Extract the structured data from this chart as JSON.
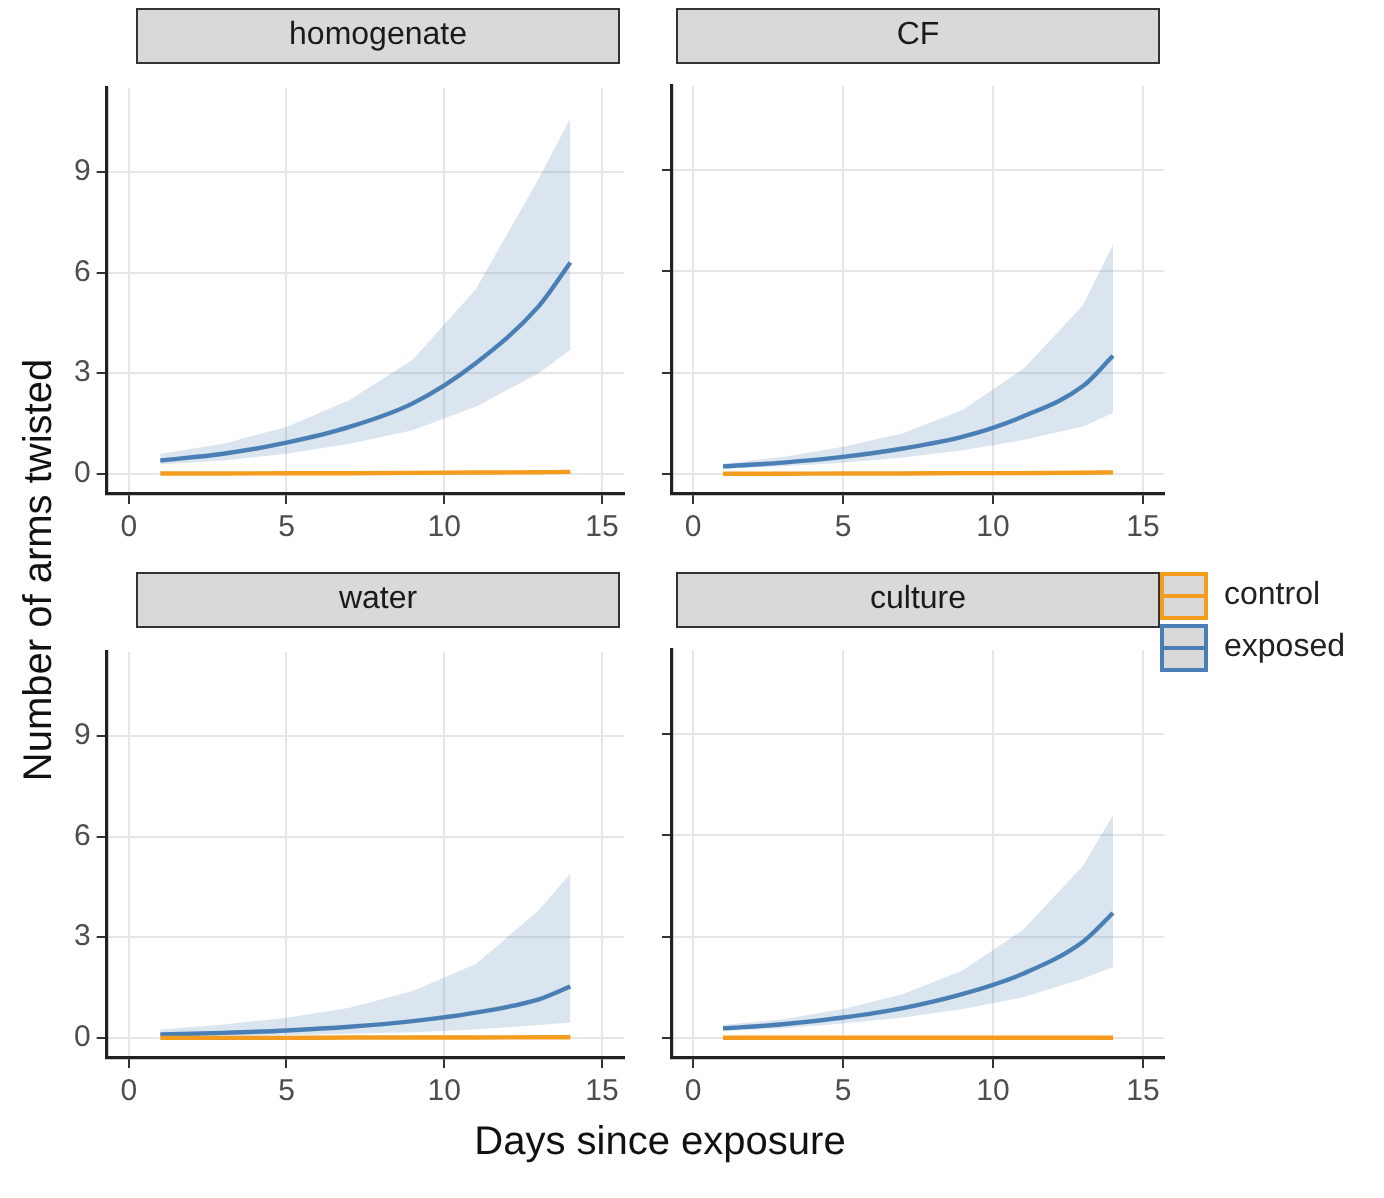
{
  "chart_data": [
    {
      "type": "line",
      "title": "homogenate",
      "ylabel": "Number of arms twisted",
      "legend": "right",
      "xlim": [
        -0.7,
        15.7
      ],
      "ylim": [
        -0.6,
        11.5
      ],
      "xticks": [
        0,
        5,
        10,
        15
      ],
      "yticks": [
        0,
        3,
        6,
        9
      ],
      "grid": true,
      "series": [
        {
          "name": "control",
          "color": "#f39c1e",
          "x": [
            1,
            3,
            5,
            7,
            9,
            11,
            13,
            14
          ],
          "values": [
            0.01,
            0.01,
            0.02,
            0.02,
            0.03,
            0.04,
            0.05,
            0.06
          ]
        },
        {
          "name": "exposed",
          "color": "#4a7fb5",
          "x": [
            1,
            3,
            5,
            7,
            9,
            11,
            13,
            14
          ],
          "values": [
            0.4,
            0.6,
            0.93,
            1.4,
            2.1,
            3.3,
            5.0,
            6.3
          ],
          "lower": [
            0.28,
            0.4,
            0.6,
            0.9,
            1.3,
            2.0,
            3.0,
            3.7
          ],
          "upper": [
            0.6,
            0.9,
            1.4,
            2.2,
            3.4,
            5.5,
            8.8,
            10.6
          ]
        }
      ]
    },
    {
      "type": "line",
      "title": "CF",
      "xlim": [
        -0.7,
        15.7
      ],
      "ylim": [
        -0.6,
        11.5
      ],
      "xticks": [
        0,
        5,
        10,
        15
      ],
      "yticks": [
        0,
        3,
        6,
        9
      ],
      "grid": true,
      "tick_labels": "x",
      "series": [
        {
          "color": "#f39c1e",
          "x": [
            1,
            3,
            5,
            7,
            9,
            11,
            13,
            14
          ],
          "values": [
            0.0,
            0.0,
            0.01,
            0.01,
            0.02,
            0.02,
            0.03,
            0.04
          ]
        },
        {
          "color": "#4a7fb5",
          "x": [
            1,
            3,
            5,
            7,
            9,
            11,
            13,
            14
          ],
          "values": [
            0.22,
            0.33,
            0.5,
            0.75,
            1.1,
            1.7,
            2.6,
            3.5
          ],
          "lower": [
            0.15,
            0.22,
            0.33,
            0.48,
            0.7,
            1.0,
            1.4,
            1.8
          ],
          "upper": [
            0.3,
            0.5,
            0.8,
            1.2,
            1.9,
            3.1,
            5.0,
            6.8
          ]
        }
      ]
    },
    {
      "type": "line",
      "title": "water",
      "xlabel": "Days since exposure",
      "xlim": [
        -0.7,
        15.7
      ],
      "ylim": [
        -0.6,
        11.5
      ],
      "xticks": [
        0,
        5,
        10,
        15
      ],
      "yticks": [
        0,
        3,
        6,
        9
      ],
      "grid": true,
      "series": [
        {
          "color": "#f39c1e",
          "x": [
            1,
            3,
            5,
            7,
            9,
            11,
            13,
            14
          ],
          "values": [
            0.0,
            0.0,
            0.0,
            0.01,
            0.01,
            0.01,
            0.02,
            0.02
          ]
        },
        {
          "color": "#4a7fb5",
          "x": [
            1,
            3,
            5,
            7,
            9,
            11,
            13,
            14
          ],
          "values": [
            0.1,
            0.15,
            0.22,
            0.33,
            0.5,
            0.75,
            1.15,
            1.53
          ],
          "lower": [
            0.03,
            0.05,
            0.08,
            0.12,
            0.17,
            0.25,
            0.38,
            0.46
          ],
          "upper": [
            0.25,
            0.4,
            0.6,
            0.9,
            1.4,
            2.2,
            3.8,
            4.9
          ]
        }
      ]
    },
    {
      "type": "line",
      "title": "culture",
      "xlim": [
        -0.7,
        15.7
      ],
      "ylim": [
        -0.6,
        11.5
      ],
      "xticks": [
        0,
        5,
        10,
        15
      ],
      "yticks": [
        0,
        3,
        6,
        9
      ],
      "grid": true,
      "tick_labels": "x",
      "series": [
        {
          "color": "#f39c1e",
          "x": [
            1,
            3,
            5,
            7,
            9,
            11,
            13,
            14
          ],
          "values": [
            0.0,
            0.0,
            0.0,
            0.0,
            0.0,
            0.0,
            0.0,
            0.0
          ]
        },
        {
          "color": "#4a7fb5",
          "x": [
            1,
            3,
            5,
            7,
            9,
            11,
            13,
            14
          ],
          "values": [
            0.28,
            0.4,
            0.6,
            0.88,
            1.3,
            1.9,
            2.85,
            3.7
          ],
          "lower": [
            0.2,
            0.28,
            0.42,
            0.6,
            0.85,
            1.2,
            1.75,
            2.1
          ],
          "upper": [
            0.38,
            0.55,
            0.85,
            1.3,
            2.0,
            3.2,
            5.1,
            6.6
          ]
        }
      ]
    }
  ]
}
